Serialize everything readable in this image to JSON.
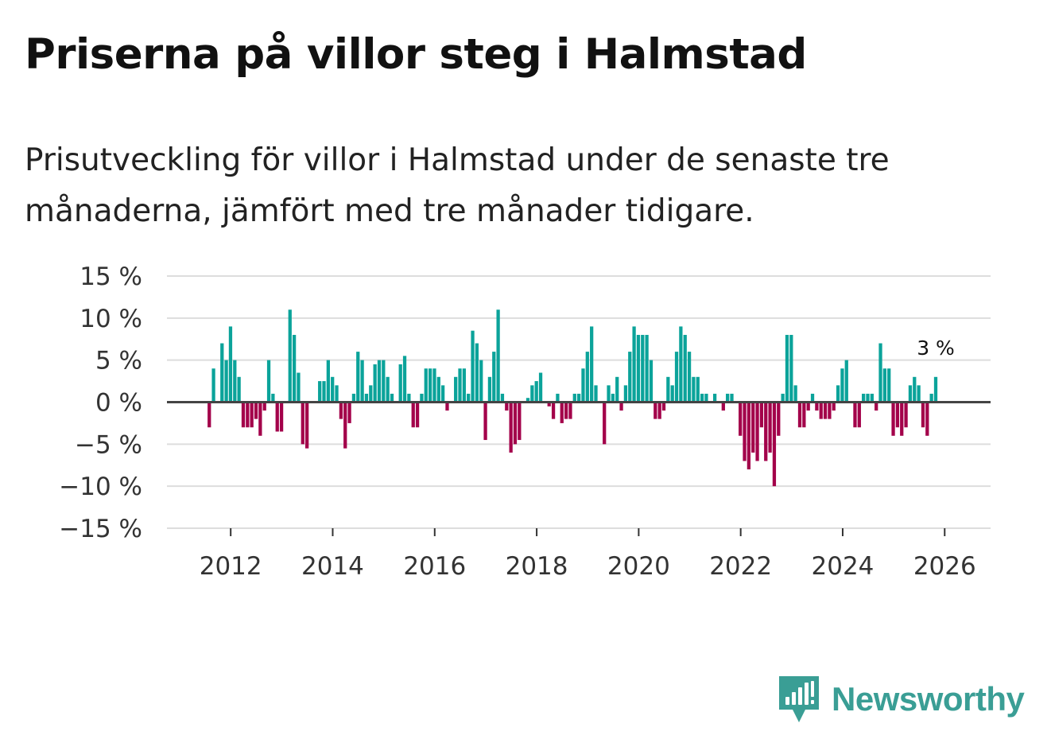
{
  "title": "Priserna på villor steg i Halmstad",
  "subtitle": "Prisutveckling för villor i Halmstad under de senaste tre månaderna, jämfört med tre månader tidigare.",
  "brand": {
    "name": "Newsworthy",
    "color": "#3a9e95"
  },
  "colors": {
    "positive": "#0ba39a",
    "negative": "#a3004a",
    "zero_line": "#444444",
    "grid": "#dddddd"
  },
  "chart_data": {
    "type": "bar",
    "x_start": 2011.58,
    "x_step": 0.0833,
    "xlim": [
      2010.75,
      2026.9
    ],
    "ylim": [
      -15,
      15
    ],
    "ytick_values": [
      15,
      10,
      5,
      0,
      -5,
      -10,
      -15
    ],
    "ytick_labels": [
      "15 %",
      "10 %",
      "5 %",
      "0 %",
      "−5 %",
      "−10 %",
      "−15 %"
    ],
    "xtick_values": [
      2012,
      2014,
      2016,
      2018,
      2020,
      2022,
      2024,
      2026
    ],
    "xtick_labels": [
      "2012",
      "2014",
      "2016",
      "2018",
      "2020",
      "2022",
      "2024",
      "2026"
    ],
    "last_value_label": "3 %",
    "values": [
      -3,
      4,
      0,
      7,
      5,
      9,
      5,
      3,
      -3,
      -3,
      -3,
      -2,
      -4,
      -1,
      5,
      1,
      -3.5,
      -3.5,
      0,
      11,
      8,
      3.5,
      -5,
      -5.5,
      0,
      0,
      2.5,
      2.5,
      5,
      3,
      2,
      -2,
      -5.5,
      -2.5,
      1,
      6,
      5,
      1,
      2,
      4.5,
      5,
      5,
      3,
      1,
      0,
      4.5,
      5.5,
      1,
      -3,
      -3,
      1,
      4,
      4,
      4,
      3,
      2,
      -1,
      0,
      3,
      4,
      4,
      1,
      8.5,
      7,
      5,
      -4.5,
      3,
      6,
      11,
      1,
      -1,
      -6,
      -5,
      -4.5,
      0,
      0.5,
      2,
      2.5,
      3.5,
      0,
      -0.5,
      -2,
      1,
      -2.5,
      -2,
      -2,
      1,
      1,
      4,
      6,
      9,
      2,
      0,
      -5,
      2,
      1,
      3,
      -1,
      2,
      6,
      9,
      8,
      8,
      8,
      5,
      -2,
      -2,
      -1,
      3,
      2,
      6,
      9,
      8,
      6,
      3,
      3,
      1,
      1,
      0,
      1,
      0,
      -1,
      1,
      1,
      0,
      -4,
      -7,
      -8,
      -6,
      -7,
      -3,
      -7,
      -6,
      -10,
      -4,
      1,
      8,
      8,
      2,
      -3,
      -3,
      -1,
      1,
      -1,
      -2,
      -2,
      -2,
      -1,
      2,
      4,
      5,
      0,
      -3,
      -3,
      1,
      1,
      1,
      -1,
      7,
      4,
      4,
      -4,
      -3,
      -4,
      -3,
      2,
      3,
      2,
      -3,
      -4,
      1,
      3
    ]
  }
}
